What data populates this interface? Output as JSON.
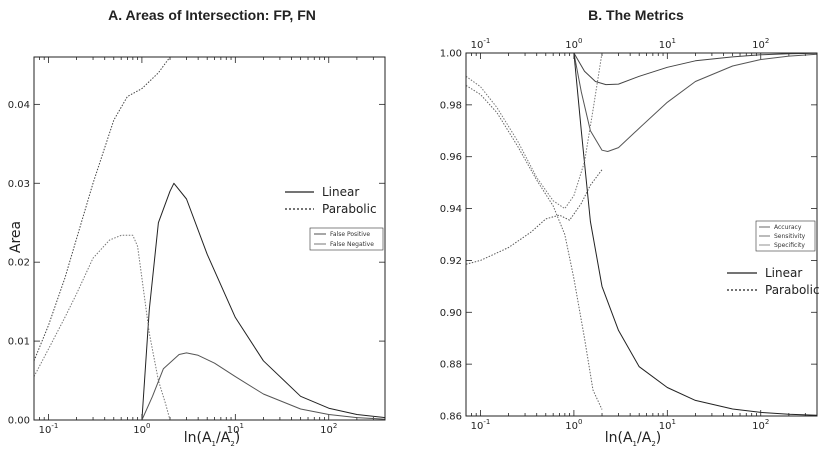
{
  "chart_data": [
    {
      "type": "line",
      "title": "A. Areas of Intersection: FP, FN",
      "xlabel": {
        "prefix": "ln(A",
        "sub1": "1",
        "mid": "/A",
        "sub2": "2",
        "suffix": ")"
      },
      "ylabel": "Area",
      "xscale": "log",
      "xlim": [
        0.07,
        400
      ],
      "ylim": [
        0,
        0.046
      ],
      "x_ticks": [
        {
          "base": "10",
          "exp": "-1"
        },
        {
          "base": "10",
          "exp": "0"
        },
        {
          "base": "10",
          "exp": "1"
        },
        {
          "base": "10",
          "exp": "2"
        }
      ],
      "y_ticks": [
        "0.00",
        "0.01",
        "0.02",
        "0.03",
        "0.04"
      ],
      "grid": false,
      "legend_styles": {
        "placement": "right",
        "entries": [
          "Linear",
          "Parabolic"
        ]
      },
      "legend_series": {
        "placement": "right",
        "entries": [
          "False Positive",
          "False Negative"
        ]
      },
      "series": [
        {
          "name": "False Positive",
          "style": "Linear",
          "color": "#222222",
          "points": [
            [
              1.0,
              0.0
            ],
            [
              1.2,
              0.014
            ],
            [
              1.5,
              0.025
            ],
            [
              2.0,
              0.029
            ],
            [
              2.2,
              0.03
            ],
            [
              3,
              0.028
            ],
            [
              5,
              0.021
            ],
            [
              10,
              0.013
            ],
            [
              20,
              0.0075
            ],
            [
              50,
              0.003
            ],
            [
              100,
              0.0015
            ],
            [
              200,
              0.0007
            ],
            [
              400,
              0.0003
            ]
          ]
        },
        {
          "name": "False Negative",
          "style": "Linear",
          "color": "#555555",
          "points": [
            [
              1.0,
              0.0
            ],
            [
              1.3,
              0.003
            ],
            [
              1.7,
              0.0065
            ],
            [
              2.5,
              0.0083
            ],
            [
              3,
              0.0085
            ],
            [
              4,
              0.0082
            ],
            [
              6,
              0.0072
            ],
            [
              10,
              0.0055
            ],
            [
              20,
              0.0033
            ],
            [
              50,
              0.0014
            ],
            [
              100,
              0.0007
            ],
            [
              200,
              0.0003
            ],
            [
              400,
              0.0001
            ]
          ]
        },
        {
          "name": "False Positive",
          "style": "Parabolic",
          "color": "#444444",
          "points": [
            [
              0.07,
              0.0075
            ],
            [
              0.1,
              0.012
            ],
            [
              0.15,
              0.018
            ],
            [
              0.2,
              0.023
            ],
            [
              0.3,
              0.03
            ],
            [
              0.5,
              0.038
            ],
            [
              0.7,
              0.041
            ],
            [
              1.0,
              0.042
            ],
            [
              1.5,
              0.044
            ],
            [
              2.0,
              0.046
            ]
          ]
        },
        {
          "name": "False Negative",
          "style": "Parabolic",
          "color": "#777777",
          "points": [
            [
              0.07,
              0.0055
            ],
            [
              0.1,
              0.009
            ],
            [
              0.15,
              0.013
            ],
            [
              0.2,
              0.016
            ],
            [
              0.3,
              0.0205
            ],
            [
              0.45,
              0.0228
            ],
            [
              0.6,
              0.0234
            ],
            [
              0.8,
              0.0234
            ],
            [
              0.9,
              0.022
            ],
            [
              1.0,
              0.018
            ],
            [
              1.2,
              0.011
            ],
            [
              1.5,
              0.005
            ],
            [
              1.8,
              0.002
            ],
            [
              2.0,
              0.0
            ]
          ]
        }
      ]
    },
    {
      "type": "line",
      "title": "B. The Metrics",
      "xlabel": {
        "prefix": "ln(A",
        "sub1": "1",
        "mid": "/A",
        "sub2": "2",
        "suffix": ")"
      },
      "ylabel": "",
      "xscale": "log",
      "xlim": [
        0.07,
        400
      ],
      "ylim": [
        0.86,
        1.0
      ],
      "x_ticks": [
        {
          "base": "10",
          "exp": "-1"
        },
        {
          "base": "10",
          "exp": "0"
        },
        {
          "base": "10",
          "exp": "1"
        },
        {
          "base": "10",
          "exp": "2"
        }
      ],
      "y_ticks": [
        "0.86",
        "0.88",
        "0.90",
        "0.92",
        "0.94",
        "0.96",
        "0.98",
        "1.00"
      ],
      "grid": false,
      "legend_series": {
        "placement": "right",
        "entries": [
          "Accuracy",
          "Sensitivity",
          "Specificity"
        ]
      },
      "legend_styles": {
        "placement": "right",
        "entries": [
          "Linear",
          "Parabolic"
        ]
      },
      "series": [
        {
          "name": "Accuracy",
          "style": "Linear",
          "color": "#444444",
          "points": [
            [
              1.0,
              1.0
            ],
            [
              1.3,
              0.993
            ],
            [
              1.7,
              0.989
            ],
            [
              2.2,
              0.9878
            ],
            [
              3,
              0.988
            ],
            [
              5,
              0.991
            ],
            [
              10,
              0.9945
            ],
            [
              20,
              0.997
            ],
            [
              50,
              0.9985
            ],
            [
              100,
              0.9993
            ],
            [
              200,
              0.9997
            ],
            [
              400,
              0.9999
            ]
          ]
        },
        {
          "name": "Sensitivity",
          "style": "Linear",
          "color": "#555555",
          "points": [
            [
              1.0,
              1.0
            ],
            [
              1.2,
              0.985
            ],
            [
              1.5,
              0.97
            ],
            [
              2.0,
              0.9625
            ],
            [
              2.3,
              0.962
            ],
            [
              3,
              0.9635
            ],
            [
              5,
              0.971
            ],
            [
              10,
              0.981
            ],
            [
              20,
              0.989
            ],
            [
              50,
              0.995
            ],
            [
              100,
              0.9975
            ],
            [
              200,
              0.9988
            ],
            [
              400,
              0.9995
            ]
          ]
        },
        {
          "name": "Specificity",
          "style": "Linear",
          "color": "#222222",
          "points": [
            [
              1.0,
              1.0
            ],
            [
              1.2,
              0.97
            ],
            [
              1.5,
              0.935
            ],
            [
              2.0,
              0.91
            ],
            [
              3,
              0.893
            ],
            [
              5,
              0.879
            ],
            [
              10,
              0.871
            ],
            [
              20,
              0.866
            ],
            [
              50,
              0.8627
            ],
            [
              100,
              0.8614
            ],
            [
              200,
              0.8607
            ],
            [
              400,
              0.8603
            ]
          ]
        },
        {
          "name": "Accuracy",
          "style": "Parabolic",
          "color": "#555555",
          "points": [
            [
              0.07,
              0.9185
            ],
            [
              0.1,
              0.92
            ],
            [
              0.2,
              0.925
            ],
            [
              0.35,
              0.931
            ],
            [
              0.5,
              0.936
            ],
            [
              0.7,
              0.9375
            ],
            [
              0.9,
              0.9355
            ],
            [
              1.2,
              0.942
            ],
            [
              1.5,
              0.949
            ],
            [
              2.0,
              0.955
            ]
          ]
        },
        {
          "name": "Sensitivity",
          "style": "Parabolic",
          "color": "#777777",
          "points": [
            [
              0.07,
              0.991
            ],
            [
              0.1,
              0.987
            ],
            [
              0.15,
              0.979
            ],
            [
              0.25,
              0.966
            ],
            [
              0.4,
              0.952
            ],
            [
              0.6,
              0.943
            ],
            [
              0.8,
              0.94
            ],
            [
              1.0,
              0.945
            ],
            [
              1.3,
              0.958
            ],
            [
              1.6,
              0.978
            ],
            [
              2.0,
              1.0
            ]
          ]
        },
        {
          "name": "Specificity",
          "style": "Parabolic",
          "color": "#666666",
          "points": [
            [
              0.07,
              0.9875
            ],
            [
              0.1,
              0.984
            ],
            [
              0.15,
              0.977
            ],
            [
              0.25,
              0.964
            ],
            [
              0.4,
              0.951
            ],
            [
              0.6,
              0.941
            ],
            [
              0.8,
              0.93
            ],
            [
              1.0,
              0.913
            ],
            [
              1.3,
              0.89
            ],
            [
              1.6,
              0.87
            ],
            [
              2.0,
              0.8625
            ]
          ]
        }
      ]
    }
  ]
}
